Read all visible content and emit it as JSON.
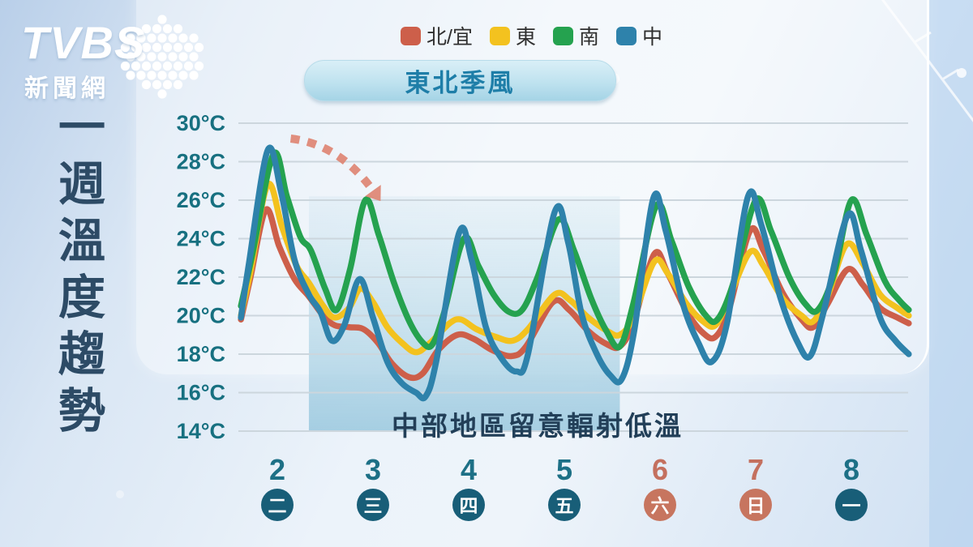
{
  "brand": {
    "name": "TVBS",
    "subtitle": "新聞網"
  },
  "page_title": "一週溫度趨勢",
  "badge": {
    "label": "東北季風"
  },
  "colors": {
    "day_label": "#1d7086",
    "day_label_weekend": "#c4705f",
    "circle": "#185e78",
    "circle_weekend": "#c7755f",
    "ytick": "#177080",
    "grid": "#ccd6dd",
    "arrow": "#de8370",
    "region_top": "rgba(176,214,231,0.16)",
    "region_bottom": "rgba(148,197,220,0.80)"
  },
  "chart_data": {
    "type": "line",
    "title": "一週溫度趨勢",
    "unit": "°C",
    "ylim": [
      14,
      30
    ],
    "yticks": [
      30,
      28,
      26,
      24,
      22,
      20,
      18,
      16,
      14
    ],
    "grid": true,
    "legend_position": "top",
    "x_axis": {
      "days": [
        {
          "date": "2",
          "weekday": "二",
          "weekend": false
        },
        {
          "date": "3",
          "weekday": "三",
          "weekend": false
        },
        {
          "date": "4",
          "weekday": "四",
          "weekend": false
        },
        {
          "date": "5",
          "weekday": "五",
          "weekend": false
        },
        {
          "date": "6",
          "weekday": "六",
          "weekend": true
        },
        {
          "date": "7",
          "weekday": "日",
          "weekend": true
        },
        {
          "date": "8",
          "weekday": "一",
          "weekend": false
        }
      ]
    },
    "highlight_region": {
      "from_day": 2.33,
      "to_day": 5.58,
      "top_temp": 26.2,
      "bottom_temp": 14,
      "label": "中部地區留意輻射低溫"
    },
    "annotation_arrow": {
      "from_day": 2.14,
      "from_temp": 29.2,
      "ctrl_day": 2.65,
      "ctrl_temp": 28.9,
      "to_day": 3.0,
      "to_temp": 26.5
    },
    "series": [
      {
        "name": "北/宜",
        "color": "#cd5f4a",
        "points": [
          [
            1.62,
            19.8
          ],
          [
            1.72,
            22.0
          ],
          [
            1.88,
            25.5
          ],
          [
            2.02,
            23.6
          ],
          [
            2.18,
            21.9
          ],
          [
            2.33,
            21.0
          ],
          [
            2.48,
            20.0
          ],
          [
            2.6,
            19.5
          ],
          [
            2.75,
            19.4
          ],
          [
            2.9,
            19.3
          ],
          [
            3.05,
            18.6
          ],
          [
            3.2,
            17.5
          ],
          [
            3.38,
            16.8
          ],
          [
            3.52,
            17.0
          ],
          [
            3.68,
            18.2
          ],
          [
            3.88,
            19.0
          ],
          [
            4.05,
            18.8
          ],
          [
            4.25,
            18.2
          ],
          [
            4.45,
            17.9
          ],
          [
            4.6,
            18.4
          ],
          [
            4.88,
            20.7
          ],
          [
            5.05,
            20.3
          ],
          [
            5.25,
            19.2
          ],
          [
            5.45,
            18.5
          ],
          [
            5.58,
            18.4
          ],
          [
            5.72,
            19.6
          ],
          [
            5.94,
            23.2
          ],
          [
            6.08,
            22.2
          ],
          [
            6.28,
            20.2
          ],
          [
            6.45,
            19.1
          ],
          [
            6.58,
            18.9
          ],
          [
            6.72,
            20.3
          ],
          [
            6.94,
            24.4
          ],
          [
            7.08,
            23.4
          ],
          [
            7.28,
            21.2
          ],
          [
            7.48,
            19.8
          ],
          [
            7.6,
            19.4
          ],
          [
            7.75,
            20.6
          ],
          [
            7.96,
            22.4
          ],
          [
            8.12,
            21.6
          ],
          [
            8.3,
            20.4
          ],
          [
            8.48,
            19.9
          ],
          [
            8.6,
            19.6
          ]
        ]
      },
      {
        "name": "東",
        "color": "#f3c21f",
        "points": [
          [
            1.62,
            20.0
          ],
          [
            1.72,
            22.3
          ],
          [
            1.9,
            26.8
          ],
          [
            2.05,
            24.6
          ],
          [
            2.2,
            22.6
          ],
          [
            2.33,
            21.7
          ],
          [
            2.48,
            20.5
          ],
          [
            2.6,
            19.9
          ],
          [
            2.75,
            20.4
          ],
          [
            2.87,
            21.4
          ],
          [
            3.0,
            20.7
          ],
          [
            3.15,
            19.4
          ],
          [
            3.3,
            18.6
          ],
          [
            3.45,
            18.1
          ],
          [
            3.6,
            18.6
          ],
          [
            3.8,
            19.6
          ],
          [
            3.92,
            19.8
          ],
          [
            4.08,
            19.3
          ],
          [
            4.28,
            18.9
          ],
          [
            4.46,
            18.7
          ],
          [
            4.62,
            19.3
          ],
          [
            4.9,
            21.1
          ],
          [
            5.06,
            20.8
          ],
          [
            5.25,
            19.9
          ],
          [
            5.45,
            19.2
          ],
          [
            5.58,
            19.0
          ],
          [
            5.72,
            19.9
          ],
          [
            5.94,
            22.8
          ],
          [
            6.08,
            22.2
          ],
          [
            6.28,
            20.6
          ],
          [
            6.45,
            19.7
          ],
          [
            6.58,
            19.5
          ],
          [
            6.72,
            20.9
          ],
          [
            6.94,
            23.3
          ],
          [
            7.08,
            22.6
          ],
          [
            7.28,
            20.9
          ],
          [
            7.48,
            20.0
          ],
          [
            7.6,
            19.7
          ],
          [
            7.75,
            21.0
          ],
          [
            7.95,
            23.7
          ],
          [
            8.12,
            22.7
          ],
          [
            8.3,
            21.1
          ],
          [
            8.48,
            20.4
          ],
          [
            8.6,
            20.0
          ]
        ]
      },
      {
        "name": "南",
        "color": "#25a24f",
        "points": [
          [
            1.62,
            20.5
          ],
          [
            1.74,
            23.2
          ],
          [
            1.96,
            28.4
          ],
          [
            2.1,
            26.2
          ],
          [
            2.24,
            24.1
          ],
          [
            2.35,
            23.4
          ],
          [
            2.5,
            21.4
          ],
          [
            2.62,
            20.3
          ],
          [
            2.76,
            22.4
          ],
          [
            2.92,
            26.0
          ],
          [
            3.06,
            24.2
          ],
          [
            3.22,
            21.7
          ],
          [
            3.38,
            19.7
          ],
          [
            3.52,
            18.6
          ],
          [
            3.62,
            18.5
          ],
          [
            3.74,
            20.1
          ],
          [
            3.95,
            24.0
          ],
          [
            4.1,
            22.6
          ],
          [
            4.26,
            21.1
          ],
          [
            4.42,
            20.2
          ],
          [
            4.56,
            20.3
          ],
          [
            4.72,
            22.0
          ],
          [
            4.94,
            25.0
          ],
          [
            5.1,
            23.4
          ],
          [
            5.28,
            20.9
          ],
          [
            5.44,
            19.2
          ],
          [
            5.58,
            18.4
          ],
          [
            5.72,
            20.6
          ],
          [
            5.96,
            25.7
          ],
          [
            6.12,
            23.9
          ],
          [
            6.3,
            21.5
          ],
          [
            6.48,
            20.0
          ],
          [
            6.6,
            19.8
          ],
          [
            6.76,
            21.6
          ],
          [
            7.0,
            26.0
          ],
          [
            7.16,
            24.4
          ],
          [
            7.35,
            22.0
          ],
          [
            7.52,
            20.6
          ],
          [
            7.65,
            20.3
          ],
          [
            7.82,
            22.2
          ],
          [
            8.0,
            26.0
          ],
          [
            8.16,
            24.2
          ],
          [
            8.35,
            21.8
          ],
          [
            8.5,
            20.8
          ],
          [
            8.6,
            20.3
          ]
        ]
      },
      {
        "name": "中",
        "color": "#2e82ab",
        "points": [
          [
            1.62,
            19.9
          ],
          [
            1.7,
            22.6
          ],
          [
            1.9,
            28.6
          ],
          [
            2.04,
            26.4
          ],
          [
            2.18,
            22.9
          ],
          [
            2.33,
            21.1
          ],
          [
            2.45,
            20.2
          ],
          [
            2.57,
            18.7
          ],
          [
            2.7,
            19.5
          ],
          [
            2.86,
            21.9
          ],
          [
            3.0,
            19.9
          ],
          [
            3.15,
            17.6
          ],
          [
            3.3,
            16.5
          ],
          [
            3.45,
            16.0
          ],
          [
            3.55,
            15.8
          ],
          [
            3.66,
            17.6
          ],
          [
            3.9,
            24.3
          ],
          [
            4.03,
            22.9
          ],
          [
            4.18,
            19.4
          ],
          [
            4.34,
            17.8
          ],
          [
            4.5,
            17.1
          ],
          [
            4.62,
            18.0
          ],
          [
            4.9,
            25.4
          ],
          [
            5.04,
            23.8
          ],
          [
            5.18,
            20.1
          ],
          [
            5.34,
            18.0
          ],
          [
            5.48,
            16.9
          ],
          [
            5.6,
            16.7
          ],
          [
            5.73,
            19.2
          ],
          [
            5.93,
            26.1
          ],
          [
            6.06,
            24.4
          ],
          [
            6.24,
            20.6
          ],
          [
            6.4,
            18.6
          ],
          [
            6.54,
            17.6
          ],
          [
            6.7,
            19.6
          ],
          [
            6.92,
            26.2
          ],
          [
            7.06,
            24.7
          ],
          [
            7.26,
            20.9
          ],
          [
            7.44,
            18.6
          ],
          [
            7.57,
            17.9
          ],
          [
            7.71,
            20.2
          ],
          [
            7.96,
            25.2
          ],
          [
            8.1,
            23.4
          ],
          [
            8.3,
            19.9
          ],
          [
            8.46,
            18.7
          ],
          [
            8.6,
            18.0
          ]
        ]
      }
    ]
  }
}
